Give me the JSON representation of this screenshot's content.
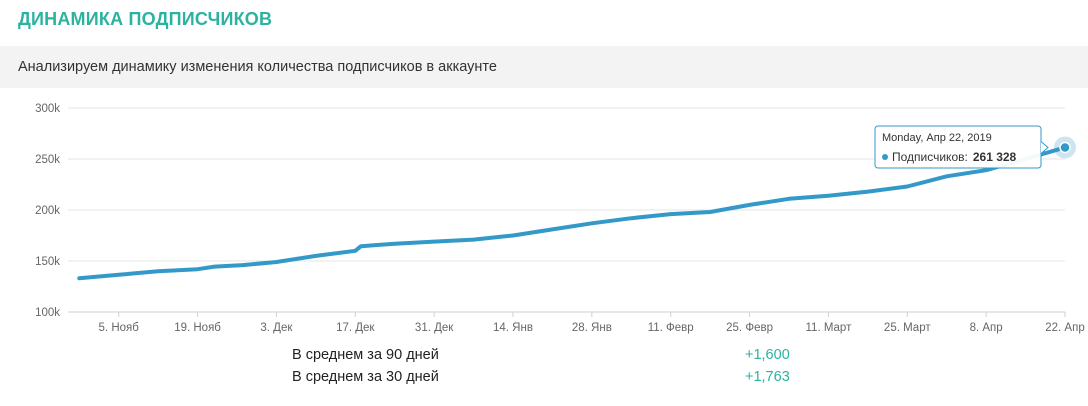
{
  "header": {
    "title": "ДИНАМИКА ПОДПИСЧИКОВ",
    "subtitle": "Анализируем динамику изменения количества подписчиков в аккаунте"
  },
  "colors": {
    "accent": "#2bb3a0",
    "line": "#3399c9",
    "grid": "#e6e6e6"
  },
  "chart_data": {
    "type": "line",
    "title": "",
    "xlabel": "",
    "ylabel": "",
    "ylim": [
      100000,
      300000
    ],
    "yticks": [
      {
        "value": 300000,
        "label": "300k"
      },
      {
        "value": 250000,
        "label": "250k"
      },
      {
        "value": 200000,
        "label": "200k"
      },
      {
        "value": 150000,
        "label": "150k"
      },
      {
        "value": 100000,
        "label": "100k"
      }
    ],
    "xlim": [
      "2018-10-27",
      "2019-04-22"
    ],
    "xticks": [
      {
        "date": "2018-11-05",
        "label": "5. Нояб"
      },
      {
        "date": "2018-11-19",
        "label": "19. Нояб"
      },
      {
        "date": "2018-12-03",
        "label": "3. Дек"
      },
      {
        "date": "2018-12-17",
        "label": "17. Дек"
      },
      {
        "date": "2018-12-31",
        "label": "31. Дек"
      },
      {
        "date": "2019-01-14",
        "label": "14. Янв"
      },
      {
        "date": "2019-01-28",
        "label": "28. Янв"
      },
      {
        "date": "2019-02-11",
        "label": "11. Февр"
      },
      {
        "date": "2019-02-25",
        "label": "25. Февр"
      },
      {
        "date": "2019-03-11",
        "label": "11. Март"
      },
      {
        "date": "2019-03-25",
        "label": "25. Март"
      },
      {
        "date": "2019-04-08",
        "label": "8. Апр"
      },
      {
        "date": "2019-04-22",
        "label": "22. Апр"
      }
    ],
    "grid": true,
    "legend": "none",
    "series": [
      {
        "name": "Подписчиков",
        "points": [
          {
            "x": "2018-10-29",
            "y": 133000
          },
          {
            "x": "2018-11-05",
            "y": 136500
          },
          {
            "x": "2018-11-12",
            "y": 140000
          },
          {
            "x": "2018-11-19",
            "y": 142000
          },
          {
            "x": "2018-11-22",
            "y": 144500
          },
          {
            "x": "2018-11-27",
            "y": 146000
          },
          {
            "x": "2018-12-03",
            "y": 149000
          },
          {
            "x": "2018-12-10",
            "y": 155000
          },
          {
            "x": "2018-12-17",
            "y": 160000
          },
          {
            "x": "2018-12-18",
            "y": 164500
          },
          {
            "x": "2018-12-24",
            "y": 167000
          },
          {
            "x": "2018-12-31",
            "y": 169000
          },
          {
            "x": "2019-01-07",
            "y": 171000
          },
          {
            "x": "2019-01-14",
            "y": 175000
          },
          {
            "x": "2019-01-21",
            "y": 181000
          },
          {
            "x": "2019-01-28",
            "y": 187000
          },
          {
            "x": "2019-02-04",
            "y": 192000
          },
          {
            "x": "2019-02-11",
            "y": 196000
          },
          {
            "x": "2019-02-18",
            "y": 198000
          },
          {
            "x": "2019-02-25",
            "y": 205000
          },
          {
            "x": "2019-03-04",
            "y": 211000
          },
          {
            "x": "2019-03-11",
            "y": 214000
          },
          {
            "x": "2019-03-18",
            "y": 218000
          },
          {
            "x": "2019-03-25",
            "y": 223000
          },
          {
            "x": "2019-04-01",
            "y": 233000
          },
          {
            "x": "2019-04-08",
            "y": 239000
          },
          {
            "x": "2019-04-15",
            "y": 250000
          },
          {
            "x": "2019-04-22",
            "y": 261328
          }
        ]
      }
    ],
    "tooltip": {
      "date": "Monday, Апр 22, 2019",
      "series": "Подписчиков",
      "separator": ":",
      "value": "261 328"
    }
  },
  "stats": [
    {
      "label": "В среднем за 90 дней",
      "value": "+1,600"
    },
    {
      "label": "В среднем за 30 дней",
      "value": "+1,763"
    }
  ]
}
